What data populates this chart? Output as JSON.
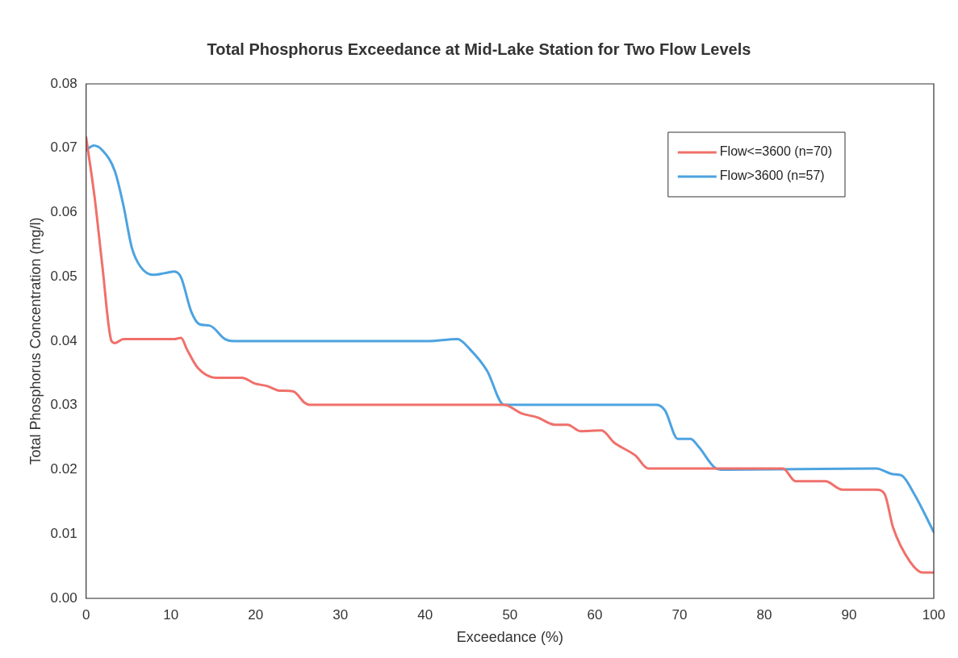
{
  "chart_data": {
    "type": "line",
    "title": "Total Phosphorus Exceedance at Mid-Lake Station for Two Flow Levels",
    "xlabel": "Exceedance (%)",
    "ylabel": "Total Phosphorus Concentration (mg/l)",
    "xlim": [
      0,
      100
    ],
    "xticks": [
      0,
      10,
      20,
      30,
      40,
      50,
      60,
      70,
      80,
      90,
      100
    ],
    "ylim": [
      0,
      0.08
    ],
    "yticks": [
      {
        "value": 0,
        "label": "0.00"
      },
      {
        "value": 0.01,
        "label": "0.01"
      },
      {
        "value": 0.02,
        "label": "0.02"
      },
      {
        "value": 0.03,
        "label": "0.03"
      },
      {
        "value": 0.04,
        "label": "0.04"
      },
      {
        "value": 0.05,
        "label": "0.05"
      },
      {
        "value": 0.06,
        "label": "0.06"
      },
      {
        "value": 0.07,
        "label": "0.07"
      },
      {
        "value": 0.08,
        "label": "0.08"
      }
    ],
    "grid": false,
    "legend": "top right",
    "marker": "none",
    "line_style": "solid",
    "series": [
      {
        "name": "Flow<=3600 (n=70)",
        "color": "#f0706a",
        "x": [
          0,
          1,
          1.9,
          3,
          3.4,
          4.4,
          10.4,
          11.2,
          11.9,
          13.2,
          15.4,
          18.4,
          19.9,
          21.4,
          22.8,
          24.4,
          25.8,
          26.3,
          49.3,
          51.3,
          53.3,
          55.3,
          56.8,
          58.3,
          60.8,
          62.3,
          64.8,
          66.3,
          82.2,
          83.7,
          87.2,
          89.2,
          93.2,
          94.2,
          95.2,
          97.2,
          98.7,
          100
        ],
        "values": [
          0.0717,
          0.0624,
          0.0519,
          0.04,
          0.0397,
          0.0403,
          0.0403,
          0.0405,
          0.0387,
          0.0358,
          0.0343,
          0.0343,
          0.0334,
          0.033,
          0.0323,
          0.0322,
          0.0304,
          0.0301,
          0.0301,
          0.0288,
          0.0281,
          0.027,
          0.027,
          0.026,
          0.0261,
          0.0242,
          0.0222,
          0.0202,
          0.0202,
          0.0182,
          0.0182,
          0.0169,
          0.0169,
          0.0162,
          0.011,
          0.0057,
          0.004,
          0.004
        ]
      },
      {
        "name": "Flow>3600 (n=57)",
        "color": "#4da3e0",
        "x": [
          0,
          0.9,
          1.9,
          3.4,
          4.4,
          5.4,
          6.4,
          7.9,
          9.4,
          10.4,
          11.2,
          12.4,
          13.4,
          14.6,
          16.4,
          17.4,
          40.3,
          43.8,
          45.3,
          47.3,
          49.3,
          51.3,
          67.3,
          68.3,
          69.8,
          71.3,
          72.3,
          74.3,
          75.2,
          93.2,
          95.2,
          96.2,
          97.7,
          100
        ],
        "values": [
          0.0697,
          0.0704,
          0.0697,
          0.0664,
          0.0611,
          0.0545,
          0.0516,
          0.0503,
          0.0506,
          0.0508,
          0.0499,
          0.0446,
          0.0426,
          0.0424,
          0.0403,
          0.04,
          0.04,
          0.0403,
          0.0387,
          0.0354,
          0.0301,
          0.0301,
          0.0301,
          0.0292,
          0.0248,
          0.0248,
          0.0235,
          0.0202,
          0.02,
          0.0202,
          0.0193,
          0.0191,
          0.0162,
          0.0103
        ]
      }
    ]
  }
}
